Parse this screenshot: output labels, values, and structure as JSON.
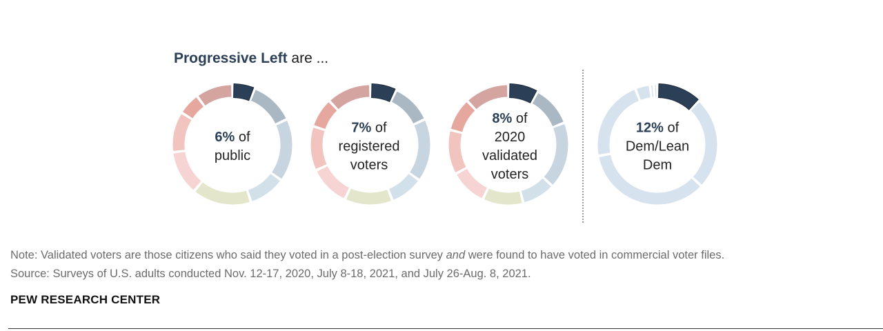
{
  "title": {
    "bold": "Progressive Left",
    "rest": "are ..."
  },
  "colors": {
    "highlight": "#2b3f57",
    "blue_dark": "#aab8c4",
    "blue_mid": "#c7d5e0",
    "blue_light": "#d2e0ea",
    "olive": "#e4e6cb",
    "pink_light": "#f6d4d3",
    "pink_mid": "#f2c4c0",
    "red_mid": "#e6a79f",
    "rose": "#d4a5a0",
    "dem_light": "#d6e3ee"
  },
  "chart_data": [
    {
      "type": "donut",
      "name": "public",
      "value": 6,
      "unit": "%",
      "label_pct": "6%",
      "label_lines": [
        "of",
        "public"
      ],
      "segments": [
        {
          "value": 6,
          "color": "highlight",
          "highlight": true
        },
        {
          "value": 12,
          "color": "blue_dark"
        },
        {
          "value": 17,
          "color": "blue_mid"
        },
        {
          "value": 10,
          "color": "blue_light"
        },
        {
          "value": 16,
          "color": "olive"
        },
        {
          "value": 12,
          "color": "pink_light"
        },
        {
          "value": 11,
          "color": "pink_mid"
        },
        {
          "value": 6,
          "color": "red_mid"
        },
        {
          "value": 10,
          "color": "rose"
        }
      ]
    },
    {
      "type": "donut",
      "name": "registered voters",
      "value": 7,
      "unit": "%",
      "label_pct": "7%",
      "label_lines": [
        "of",
        "registered",
        "voters"
      ],
      "segments": [
        {
          "value": 7,
          "color": "highlight",
          "highlight": true
        },
        {
          "value": 11,
          "color": "blue_dark"
        },
        {
          "value": 17,
          "color": "blue_mid"
        },
        {
          "value": 9,
          "color": "blue_light"
        },
        {
          "value": 13,
          "color": "olive"
        },
        {
          "value": 11,
          "color": "pink_light"
        },
        {
          "value": 12,
          "color": "pink_mid"
        },
        {
          "value": 8,
          "color": "red_mid"
        },
        {
          "value": 12,
          "color": "rose"
        }
      ]
    },
    {
      "type": "donut",
      "name": "2020 validated voters",
      "value": 8,
      "unit": "%",
      "label_pct": "8%",
      "label_lines": [
        "of",
        "2020",
        "validated",
        "voters"
      ],
      "segments": [
        {
          "value": 8,
          "color": "highlight",
          "highlight": true
        },
        {
          "value": 11,
          "color": "blue_dark"
        },
        {
          "value": 18,
          "color": "blue_mid"
        },
        {
          "value": 9,
          "color": "blue_light"
        },
        {
          "value": 11,
          "color": "olive"
        },
        {
          "value": 10,
          "color": "pink_light"
        },
        {
          "value": 12,
          "color": "pink_mid"
        },
        {
          "value": 9,
          "color": "red_mid"
        },
        {
          "value": 12,
          "color": "rose"
        }
      ]
    },
    {
      "type": "donut",
      "name": "Dem/Lean Dem",
      "value": 12,
      "unit": "%",
      "label_pct": "12%",
      "label_lines": [
        "of",
        "Dem/Lean",
        "Dem"
      ],
      "segments": [
        {
          "value": 12,
          "color": "highlight",
          "highlight": true
        },
        {
          "value": 25,
          "color": "dem_light"
        },
        {
          "value": 35,
          "color": "dem_light"
        },
        {
          "value": 22,
          "color": "dem_light"
        },
        {
          "value": 4,
          "color": "dem_light"
        },
        {
          "value": 1,
          "color": "dem_light"
        },
        {
          "value": 1,
          "color": "dem_light"
        }
      ]
    }
  ],
  "note": {
    "line1_before": "Note: Validated voters are those citizens who said they voted in a post-election survey ",
    "line1_italic": "and",
    "line1_after": " were found to have voted in commercial voter files.",
    "line2": "Source: Surveys of U.S. adults conducted Nov. 12-17, 2020, July 8-18, 2021, and July 26-Aug. 8, 2021."
  },
  "source_brand": "PEW RESEARCH CENTER"
}
